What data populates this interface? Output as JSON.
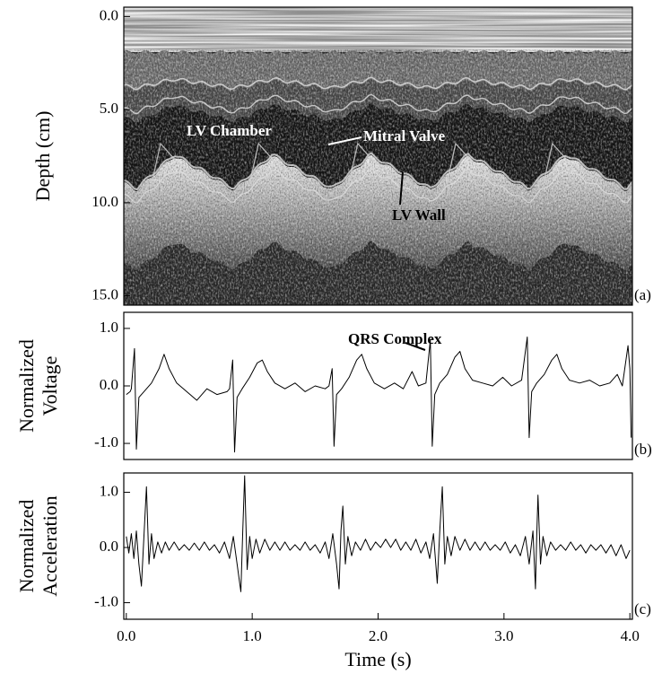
{
  "chart_data": [
    {
      "type": "image",
      "ylabel": "Depth (cm)",
      "ylim": [
        15.5,
        -0.5
      ],
      "yticks": [
        {
          "value": 0,
          "label": "0.0"
        },
        {
          "value": 5,
          "label": "5.0"
        },
        {
          "value": 10,
          "label": "10.0"
        },
        {
          "value": 15,
          "label": "15.0"
        }
      ],
      "annotations": [
        "LV Chamber",
        "Mitral Valve",
        "LV Wall"
      ],
      "panel_label": "(a)"
    },
    {
      "type": "line",
      "ylabel": [
        "Normalized",
        "Voltage"
      ],
      "xlim": [
        -0.02,
        4.02
      ],
      "ylim": [
        -1.28,
        1.28
      ],
      "yticks": [
        {
          "value": 1,
          "label": "1.0"
        },
        {
          "value": 0,
          "label": "0.0"
        },
        {
          "value": -1,
          "label": "-1.0"
        }
      ],
      "color": "#000000",
      "annotations": [
        "QRS Complex"
      ],
      "panel_label": "(b)",
      "x": [
        0.0,
        0.03,
        0.04,
        0.065,
        0.08,
        0.1,
        0.14,
        0.2,
        0.26,
        0.3,
        0.34,
        0.4,
        0.48,
        0.56,
        0.64,
        0.72,
        0.8,
        0.82,
        0.845,
        0.86,
        0.88,
        0.92,
        0.98,
        1.04,
        1.08,
        1.12,
        1.18,
        1.26,
        1.34,
        1.42,
        1.5,
        1.58,
        1.61,
        1.635,
        1.65,
        1.67,
        1.71,
        1.77,
        1.83,
        1.87,
        1.91,
        1.97,
        2.05,
        2.13,
        2.2,
        2.27,
        2.32,
        2.38,
        2.415,
        2.43,
        2.45,
        2.49,
        2.55,
        2.61,
        2.65,
        2.69,
        2.75,
        2.83,
        2.91,
        2.99,
        3.06,
        3.14,
        3.185,
        3.2,
        3.22,
        3.26,
        3.32,
        3.38,
        3.42,
        3.46,
        3.52,
        3.6,
        3.68,
        3.76,
        3.84,
        3.9,
        3.94,
        3.985,
        4.0,
        4.01
      ],
      "values": [
        -0.15,
        -0.1,
        -0.05,
        0.65,
        -1.1,
        -0.2,
        -0.1,
        0.05,
        0.3,
        0.55,
        0.3,
        0.05,
        -0.1,
        -0.25,
        -0.05,
        -0.15,
        -0.1,
        -0.05,
        0.45,
        -1.15,
        -0.2,
        -0.05,
        0.15,
        0.4,
        0.45,
        0.25,
        0.05,
        -0.05,
        0.05,
        -0.1,
        0.0,
        -0.05,
        0.0,
        0.3,
        -1.05,
        -0.15,
        -0.05,
        0.15,
        0.45,
        0.55,
        0.3,
        0.05,
        -0.05,
        0.05,
        -0.05,
        0.25,
        0.0,
        0.05,
        0.8,
        -1.05,
        -0.15,
        0.05,
        0.2,
        0.5,
        0.6,
        0.3,
        0.1,
        0.05,
        0.0,
        0.15,
        0.0,
        0.1,
        0.85,
        -0.9,
        -0.1,
        0.05,
        0.2,
        0.45,
        0.55,
        0.3,
        0.1,
        0.05,
        0.1,
        0.0,
        0.05,
        0.2,
        0.0,
        0.7,
        0.3,
        -0.9
      ]
    },
    {
      "type": "line",
      "ylabel": [
        "Normalized",
        "Acceleration"
      ],
      "xlabel": "Time (s)",
      "xlim": [
        -0.02,
        4.02
      ],
      "ylim": [
        -1.3,
        1.35
      ],
      "xticks": [
        {
          "value": 0,
          "label": "0.0"
        },
        {
          "value": 1,
          "label": "1.0"
        },
        {
          "value": 2,
          "label": "2.0"
        },
        {
          "value": 3,
          "label": "3.0"
        },
        {
          "value": 4,
          "label": "4.0"
        }
      ],
      "yticks": [
        {
          "value": 1,
          "label": "1.0"
        },
        {
          "value": 0,
          "label": "0.0"
        },
        {
          "value": -1,
          "label": "-1.0"
        }
      ],
      "color": "#000000",
      "panel_label": "(c)",
      "x": [
        0.0,
        0.02,
        0.04,
        0.06,
        0.08,
        0.1,
        0.12,
        0.14,
        0.16,
        0.18,
        0.2,
        0.22,
        0.25,
        0.28,
        0.31,
        0.34,
        0.38,
        0.42,
        0.46,
        0.5,
        0.54,
        0.58,
        0.62,
        0.66,
        0.7,
        0.74,
        0.78,
        0.82,
        0.85,
        0.88,
        0.91,
        0.925,
        0.94,
        0.96,
        0.98,
        1.0,
        1.03,
        1.06,
        1.1,
        1.14,
        1.18,
        1.22,
        1.26,
        1.3,
        1.34,
        1.38,
        1.42,
        1.46,
        1.5,
        1.54,
        1.58,
        1.61,
        1.64,
        1.67,
        1.69,
        1.705,
        1.72,
        1.74,
        1.76,
        1.79,
        1.82,
        1.86,
        1.9,
        1.94,
        1.98,
        2.02,
        2.06,
        2.1,
        2.14,
        2.18,
        2.22,
        2.26,
        2.3,
        2.34,
        2.38,
        2.41,
        2.44,
        2.47,
        2.49,
        2.51,
        2.53,
        2.55,
        2.58,
        2.61,
        2.65,
        2.69,
        2.73,
        2.77,
        2.81,
        2.85,
        2.89,
        2.93,
        2.97,
        3.01,
        3.05,
        3.09,
        3.13,
        3.17,
        3.2,
        3.23,
        3.25,
        3.26,
        3.27,
        3.29,
        3.31,
        3.34,
        3.37,
        3.41,
        3.45,
        3.49,
        3.53,
        3.57,
        3.61,
        3.65,
        3.69,
        3.73,
        3.77,
        3.81,
        3.85,
        3.89,
        3.93,
        3.97,
        4.0
      ],
      "values": [
        0.2,
        -0.1,
        0.25,
        -0.2,
        0.3,
        -0.3,
        -0.7,
        0.2,
        1.1,
        -0.3,
        0.25,
        -0.2,
        0.1,
        -0.1,
        0.1,
        -0.05,
        0.1,
        -0.05,
        0.05,
        -0.05,
        0.08,
        -0.05,
        0.1,
        -0.05,
        0.05,
        -0.1,
        0.1,
        -0.2,
        0.2,
        -0.3,
        -0.8,
        0.3,
        1.3,
        -0.4,
        0.2,
        -0.2,
        0.15,
        -0.1,
        0.15,
        -0.05,
        0.1,
        -0.05,
        0.1,
        -0.05,
        0.05,
        -0.05,
        0.1,
        -0.05,
        0.05,
        -0.1,
        0.1,
        -0.2,
        0.25,
        -0.3,
        -0.75,
        0.3,
        0.75,
        -0.3,
        0.2,
        -0.15,
        0.1,
        -0.05,
        0.15,
        -0.05,
        0.1,
        0.0,
        0.15,
        0.0,
        0.15,
        -0.05,
        0.1,
        -0.05,
        0.15,
        -0.1,
        0.1,
        -0.2,
        0.25,
        -0.65,
        0.3,
        1.1,
        -0.3,
        0.2,
        -0.15,
        0.2,
        -0.05,
        0.15,
        -0.05,
        0.1,
        -0.05,
        0.1,
        -0.05,
        0.05,
        -0.05,
        0.1,
        -0.1,
        0.05,
        -0.15,
        0.2,
        -0.3,
        0.3,
        -0.75,
        0.2,
        0.95,
        -0.3,
        0.2,
        -0.15,
        0.1,
        -0.05,
        0.05,
        -0.05,
        0.1,
        -0.05,
        0.05,
        -0.1,
        0.05,
        -0.05,
        0.05,
        -0.1,
        0.05,
        -0.15,
        0.05,
        -0.2,
        -0.05
      ]
    }
  ]
}
